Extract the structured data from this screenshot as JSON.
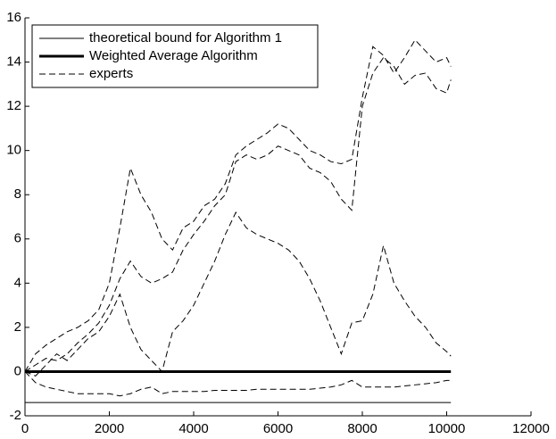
{
  "chart_data": {
    "type": "line",
    "x": [
      0,
      250,
      500,
      750,
      1000,
      1250,
      1500,
      1750,
      2000,
      2250,
      2500,
      2750,
      3000,
      3250,
      3500,
      3750,
      4000,
      4250,
      4500,
      4750,
      5000,
      5250,
      5500,
      5750,
      6000,
      6250,
      6500,
      6750,
      7000,
      7250,
      7500,
      7750,
      8000,
      8250,
      8500,
      8750,
      9000,
      9250,
      9500,
      9750,
      10000,
      10100
    ],
    "series": [
      {
        "name": "theoretical bound for Algorithm 1",
        "color": "#000000",
        "width": 1,
        "dash": false,
        "lines": [
          [
            -1.4,
            -1.4,
            -1.4,
            -1.4,
            -1.4,
            -1.4,
            -1.4,
            -1.4,
            -1.4,
            -1.4,
            -1.4,
            -1.4,
            -1.4,
            -1.4,
            -1.4,
            -1.4,
            -1.4,
            -1.4,
            -1.4,
            -1.4,
            -1.4,
            -1.4,
            -1.4,
            -1.4,
            -1.4,
            -1.4,
            -1.4,
            -1.4,
            -1.4,
            -1.4,
            -1.4,
            -1.4,
            -1.4,
            -1.4,
            -1.4,
            -1.4,
            -1.4,
            -1.4,
            -1.4,
            -1.4,
            -1.4,
            -1.4
          ]
        ]
      },
      {
        "name": "Weighted Average Algorithm",
        "color": "#000000",
        "width": 3,
        "dash": false,
        "lines": [
          [
            0,
            0,
            0,
            0,
            0,
            0,
            0,
            0,
            0,
            0,
            0,
            0,
            0,
            0,
            0,
            0,
            0,
            0,
            0,
            0,
            0,
            0,
            0,
            0,
            0,
            0,
            0,
            0,
            0,
            0,
            0,
            0,
            0,
            0,
            0,
            0,
            0,
            0,
            0,
            0,
            0,
            0
          ]
        ]
      },
      {
        "name": "experts",
        "color": "#000000",
        "width": 1,
        "dash": true,
        "lines": [
          [
            0,
            0.8,
            1.2,
            1.5,
            1.8,
            2.0,
            2.3,
            2.8,
            4.0,
            6.5,
            9.2,
            8.0,
            7.2,
            6.0,
            5.5,
            6.5,
            6.8,
            7.5,
            7.8,
            8.5,
            9.8,
            10.2,
            10.5,
            10.8,
            11.2,
            11.0,
            10.5,
            10.0,
            9.8,
            9.5,
            9.4,
            9.6,
            12.4,
            14.7,
            14.3,
            13.5,
            14.2,
            15.0,
            14.5,
            14.0,
            14.2,
            13.8
          ],
          [
            0,
            0.3,
            0.6,
            0.5,
            0.8,
            1.3,
            1.7,
            2.2,
            3.0,
            4.2,
            5.0,
            4.3,
            4.0,
            4.2,
            4.5,
            5.5,
            6.2,
            6.8,
            7.5,
            8.0,
            9.5,
            9.8,
            9.6,
            9.8,
            10.2,
            10.0,
            9.8,
            9.2,
            9.0,
            8.6,
            7.8,
            7.3,
            12.0,
            13.5,
            14.2,
            13.8,
            13.0,
            13.4,
            13.5,
            12.8,
            12.6,
            13.2
          ],
          [
            0,
            -0.2,
            0.3,
            0.8,
            0.5,
            1.0,
            1.5,
            1.8,
            2.5,
            3.5,
            2.0,
            1.0,
            0.5,
            0.0,
            1.8,
            2.3,
            3.0,
            4.0,
            5.0,
            6.2,
            7.2,
            6.5,
            6.2,
            6.0,
            5.8,
            5.5,
            5.0,
            4.2,
            3.2,
            2.0,
            0.8,
            2.2,
            2.3,
            3.5,
            5.7,
            4.0,
            3.2,
            2.5,
            2.0,
            1.3,
            0.9,
            0.7
          ],
          [
            0,
            -0.5,
            -0.7,
            -0.8,
            -0.9,
            -1.0,
            -1.0,
            -1.0,
            -1.0,
            -1.1,
            -1.0,
            -0.8,
            -0.7,
            -1.0,
            -0.9,
            -0.9,
            -0.9,
            -0.9,
            -0.85,
            -0.85,
            -0.85,
            -0.85,
            -0.8,
            -0.8,
            -0.8,
            -0.8,
            -0.8,
            -0.8,
            -0.75,
            -0.7,
            -0.6,
            -0.4,
            -0.7,
            -0.7,
            -0.7,
            -0.7,
            -0.65,
            -0.6,
            -0.55,
            -0.5,
            -0.4,
            -0.4
          ]
        ]
      }
    ],
    "xlim": [
      0,
      12000
    ],
    "xticks": [
      0,
      2000,
      4000,
      6000,
      8000,
      10000,
      12000
    ],
    "ylim": [
      -2,
      16
    ],
    "yticks": [
      -2,
      0,
      2,
      4,
      6,
      8,
      10,
      12,
      14,
      16
    ],
    "grid": false,
    "legend": "upper left"
  }
}
